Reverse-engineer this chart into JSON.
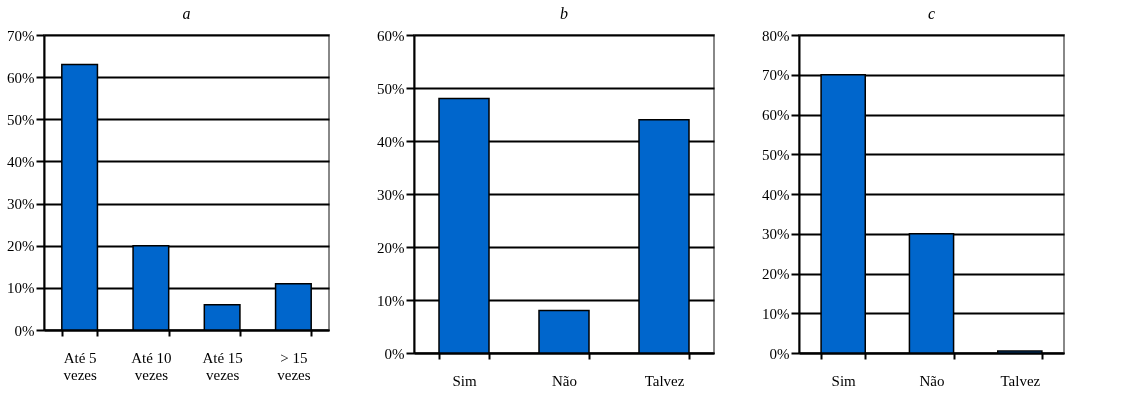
{
  "chart_data": [
    {
      "type": "bar",
      "title": "a",
      "categories": [
        "Até 5 vezes",
        "Até 10 vezes",
        "Até 15 vezes",
        "> 15 vezes"
      ],
      "values": [
        63,
        20,
        6,
        11
      ],
      "color": "#0066cc",
      "ylim": [
        0,
        70
      ],
      "yticks": [
        {
          "value": 0,
          "label": "0%"
        },
        {
          "value": 10,
          "label": "10%"
        },
        {
          "value": 20,
          "label": "20%"
        },
        {
          "value": 30,
          "label": "30%"
        },
        {
          "value": 40,
          "label": "40%"
        },
        {
          "value": 50,
          "label": "50%"
        },
        {
          "value": 60,
          "label": "60%"
        },
        {
          "value": 70,
          "label": "70%"
        }
      ],
      "grid": "y"
    },
    {
      "type": "bar",
      "title": "b",
      "categories": [
        "Sim",
        "Não",
        "Talvez"
      ],
      "values": [
        48,
        8,
        44
      ],
      "color": "#0066cc",
      "ylim": [
        0,
        60
      ],
      "yticks": [
        {
          "value": 0,
          "label": "0%"
        },
        {
          "value": 10,
          "label": "10%"
        },
        {
          "value": 20,
          "label": "20%"
        },
        {
          "value": 30,
          "label": "30%"
        },
        {
          "value": 40,
          "label": "40%"
        },
        {
          "value": 50,
          "label": "50%"
        },
        {
          "value": 60,
          "label": "60%"
        }
      ],
      "grid": "y"
    },
    {
      "type": "bar",
      "title": "c",
      "categories": [
        "Sim",
        "Não",
        "Talvez"
      ],
      "values": [
        70,
        30,
        0.5
      ],
      "color": "#0066cc",
      "ylim": [
        0,
        80
      ],
      "yticks": [
        {
          "value": 0,
          "label": "0%"
        },
        {
          "value": 10,
          "label": "10%"
        },
        {
          "value": 20,
          "label": "20%"
        },
        {
          "value": 30,
          "label": "30%"
        },
        {
          "value": 40,
          "label": "40%"
        },
        {
          "value": 50,
          "label": "50%"
        },
        {
          "value": 60,
          "label": "60%"
        },
        {
          "value": 70,
          "label": "70%"
        },
        {
          "value": 80,
          "label": "80%"
        }
      ],
      "grid": "y"
    }
  ]
}
